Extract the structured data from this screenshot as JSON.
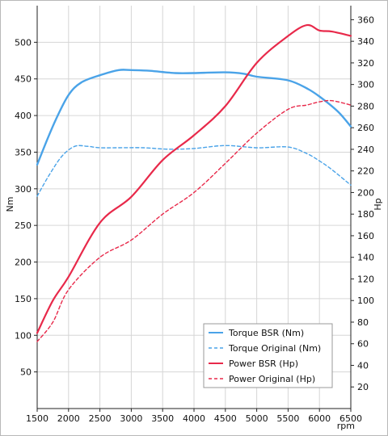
{
  "chart_data": {
    "type": "line",
    "xlabel": "rpm",
    "ylabel_left": "Nm",
    "ylabel_right": "Hp",
    "xlim": [
      1500,
      6500
    ],
    "ylim_left": [
      0,
      550
    ],
    "ylim_right": [
      0,
      373
    ],
    "x_ticks": [
      1500,
      2000,
      2500,
      3000,
      3500,
      4000,
      4500,
      5000,
      5500,
      6000,
      6500
    ],
    "y_left_ticks": [
      50,
      100,
      150,
      200,
      250,
      300,
      350,
      400,
      450,
      500
    ],
    "y_right_ticks": [
      20,
      40,
      60,
      80,
      100,
      120,
      140,
      160,
      180,
      200,
      220,
      240,
      260,
      280,
      300,
      320,
      340,
      360
    ],
    "grid": true,
    "legend_position": "bottom-right",
    "series": [
      {
        "name": "Torque BSR (Nm)",
        "axis": "left",
        "color": "#4aa3e8",
        "style": "solid",
        "x": [
          1500,
          1650,
          1800,
          2000,
          2200,
          2500,
          2800,
          3000,
          3300,
          3700,
          4000,
          4500,
          4800,
          5000,
          5500,
          5800,
          6000,
          6300,
          6500
        ],
        "y": [
          333,
          365,
          395,
          428,
          445,
          455,
          462,
          462,
          461,
          458,
          458,
          459,
          457,
          453,
          448,
          437,
          426,
          405,
          385
        ]
      },
      {
        "name": "Torque Original (Nm)",
        "axis": "left",
        "color": "#4aa3e8",
        "style": "dashed",
        "x": [
          1500,
          1700,
          1900,
          2100,
          2300,
          2500,
          2800,
          3200,
          3600,
          4000,
          4500,
          5000,
          5500,
          5800,
          6000,
          6200,
          6500
        ],
        "y": [
          290,
          320,
          345,
          358,
          358,
          356,
          356,
          356,
          354,
          355,
          359,
          356,
          357,
          348,
          338,
          326,
          305
        ]
      },
      {
        "name": "Power BSR (Hp)",
        "axis": "right",
        "color": "#e8294a",
        "style": "solid",
        "x": [
          1500,
          1750,
          2000,
          2500,
          3000,
          3500,
          4000,
          4500,
          5000,
          5500,
          5800,
          6000,
          6200,
          6500
        ],
        "y": [
          70,
          100,
          122,
          172,
          196,
          230,
          253,
          280,
          320,
          345,
          355,
          350,
          349,
          345
        ]
      },
      {
        "name": "Power Original (Hp)",
        "axis": "right",
        "color": "#e8294a",
        "style": "dashed",
        "x": [
          1500,
          1750,
          2000,
          2500,
          3000,
          3500,
          4000,
          4500,
          5000,
          5500,
          5800,
          6000,
          6200,
          6500
        ],
        "y": [
          62,
          80,
          110,
          140,
          156,
          180,
          200,
          227,
          255,
          277,
          281,
          284,
          285,
          281
        ]
      }
    ]
  }
}
